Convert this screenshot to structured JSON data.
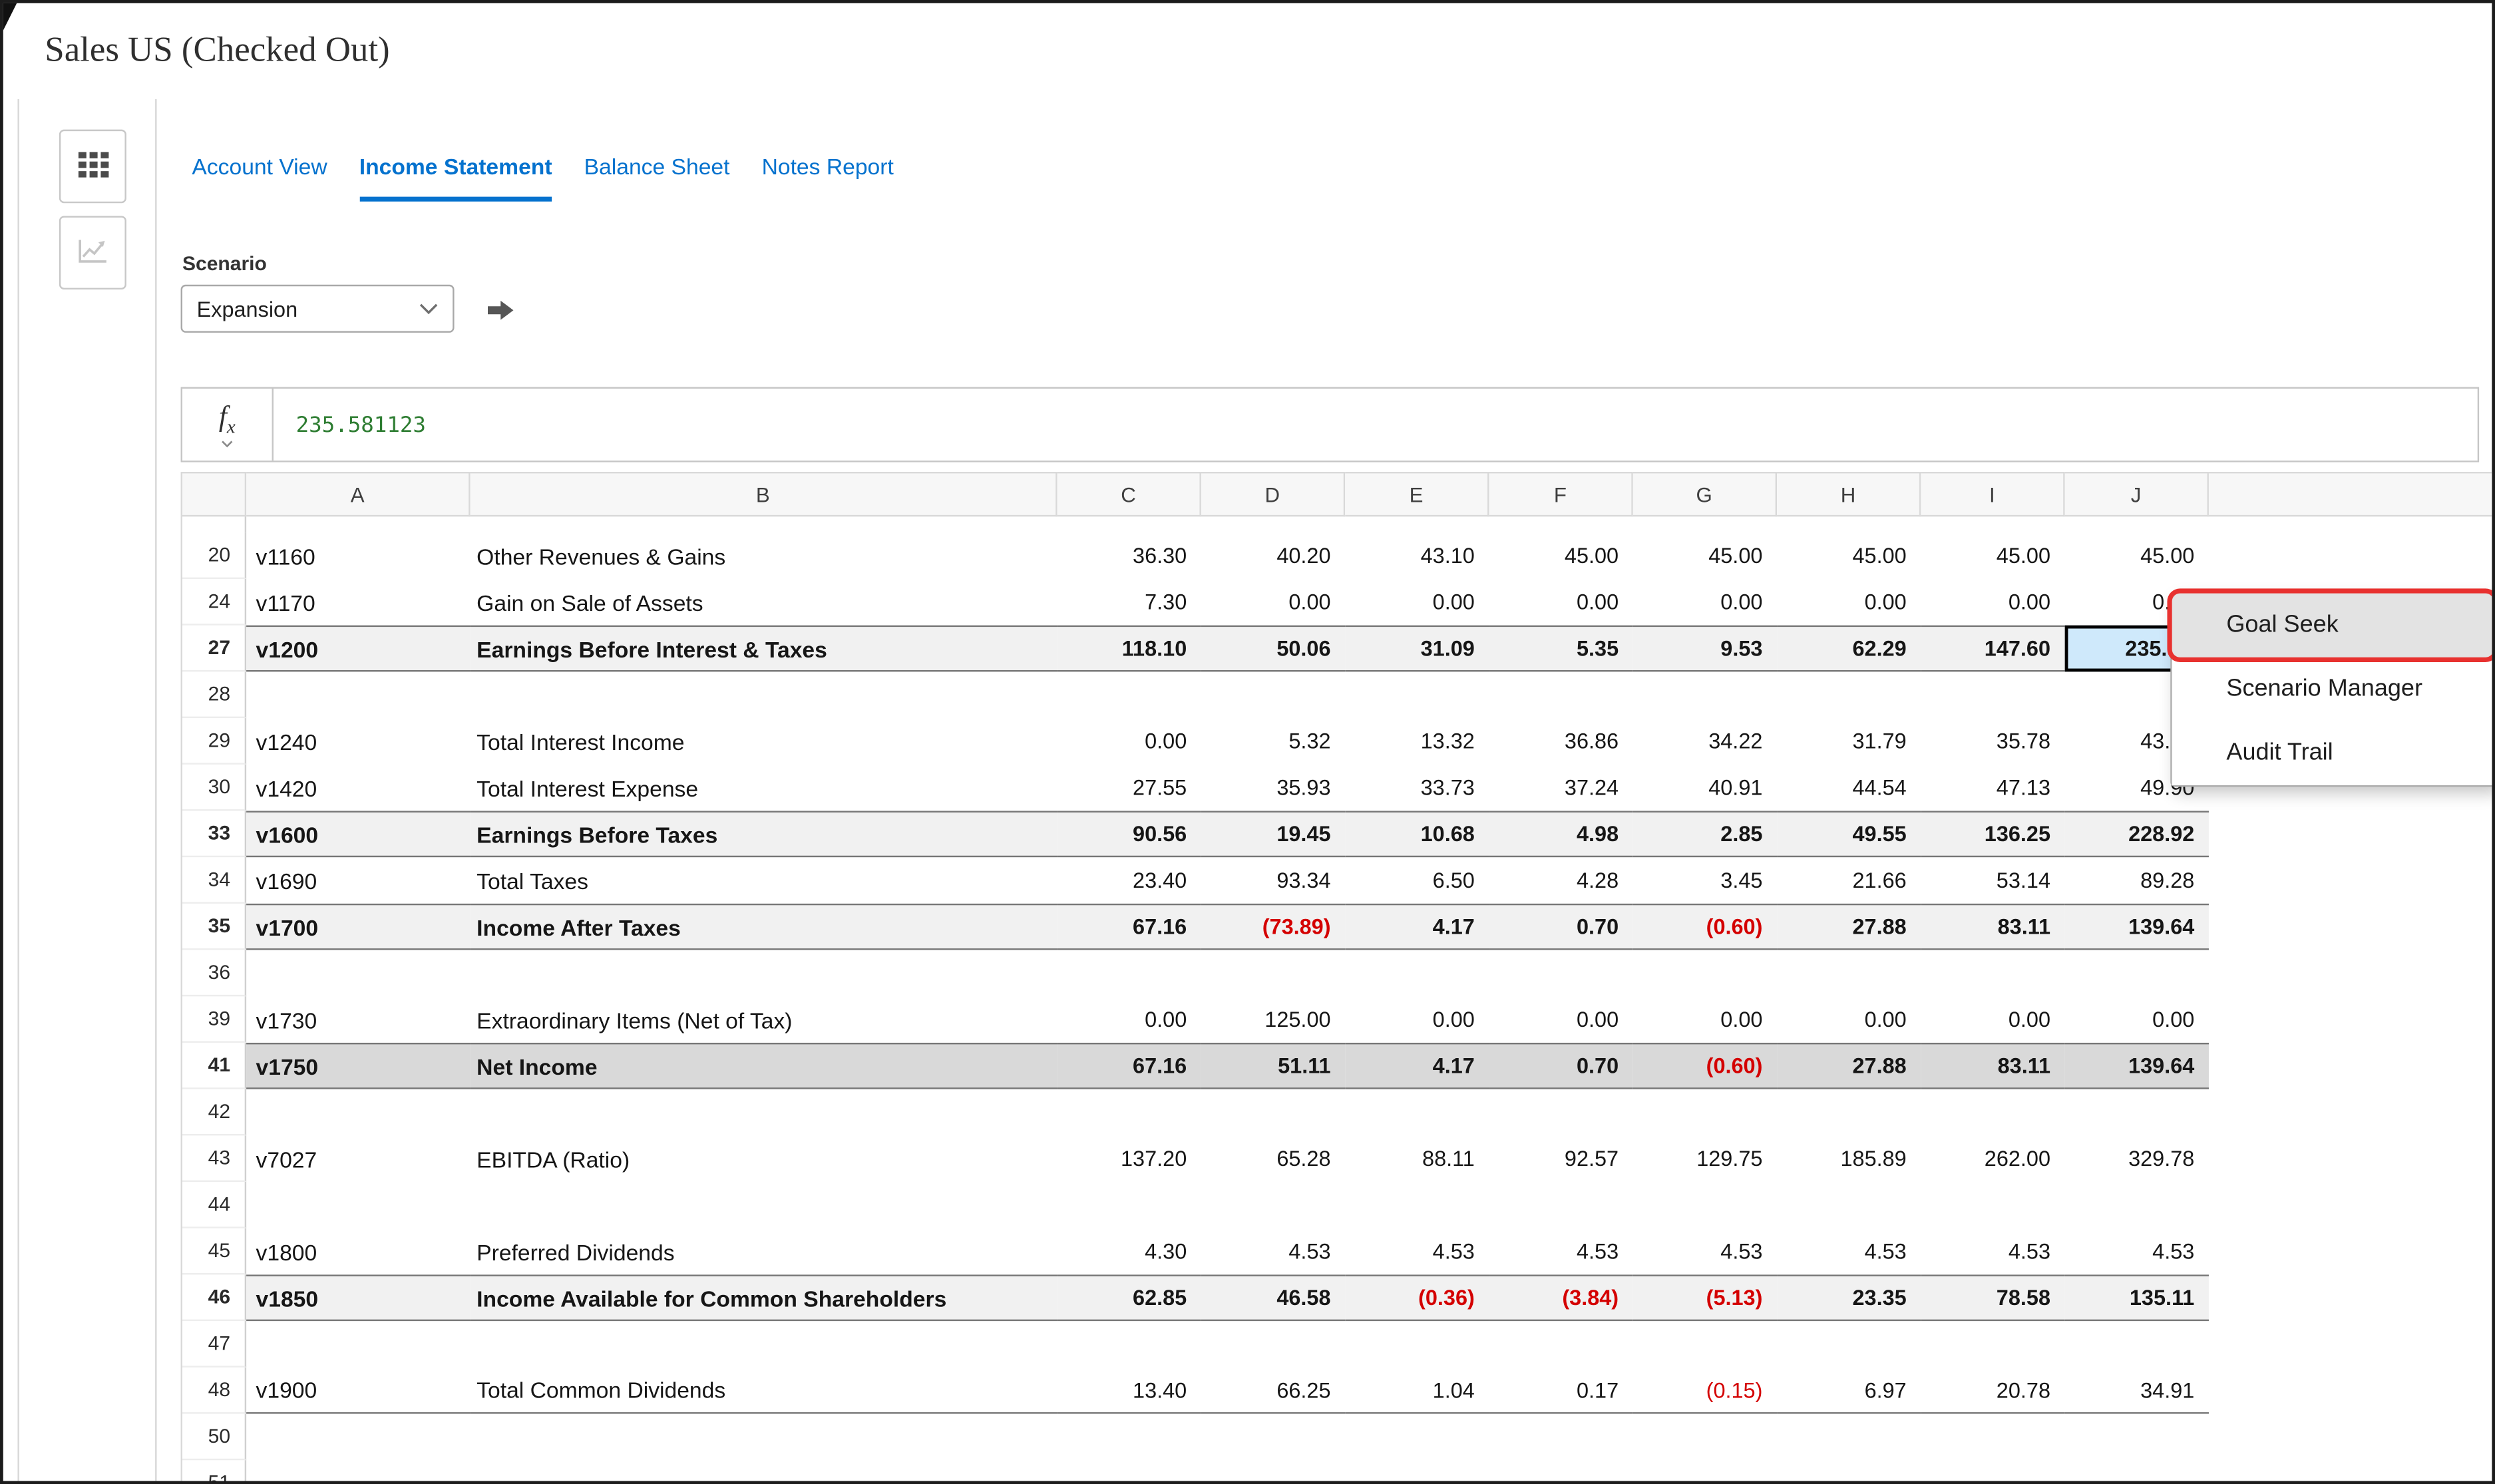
{
  "window": {
    "title": "Sales US (Checked Out)"
  },
  "rail": {
    "buttons": [
      {
        "name": "grid-view",
        "icon": "grid-icon"
      },
      {
        "name": "chart-view",
        "icon": "chart-icon"
      }
    ]
  },
  "tabs": [
    {
      "label": "Account View",
      "active": false
    },
    {
      "label": "Income Statement",
      "active": true
    },
    {
      "label": "Balance Sheet",
      "active": false
    },
    {
      "label": "Notes Report",
      "active": false
    }
  ],
  "scenario": {
    "label": "Scenario",
    "selected": "Expansion"
  },
  "formula_bar": {
    "value": "235.581123"
  },
  "grid": {
    "column_headers": [
      "A",
      "B",
      "C",
      "D",
      "E",
      "F",
      "G",
      "H",
      "I",
      "J"
    ],
    "selected_cell": {
      "row": "27",
      "col": "J"
    },
    "rows": [
      {
        "num": "20",
        "account": "v1160",
        "label": "Other Revenues & Gains",
        "values": [
          "36.30",
          "40.20",
          "43.10",
          "45.00",
          "45.00",
          "45.00",
          "45.00",
          "45.00"
        ],
        "style": "normal"
      },
      {
        "num": "24",
        "account": "v1170",
        "label": "Gain on Sale of Assets",
        "values": [
          "7.30",
          "0.00",
          "0.00",
          "0.00",
          "0.00",
          "0.00",
          "0.00",
          "0.00"
        ],
        "style": "normal"
      },
      {
        "num": "27",
        "account": "v1200",
        "label": "Earnings Before Interest & Taxes",
        "values": [
          "118.10",
          "50.06",
          "31.09",
          "5.35",
          "9.53",
          "62.29",
          "147.60",
          "235.58"
        ],
        "style": "subtotal"
      },
      {
        "num": "28",
        "style": "blank"
      },
      {
        "num": "29",
        "account": "v1240",
        "label": "Total Interest Income",
        "values": [
          "0.00",
          "5.32",
          "13.32",
          "36.86",
          "34.22",
          "31.79",
          "35.78",
          "43.24"
        ],
        "style": "normal"
      },
      {
        "num": "30",
        "account": "v1420",
        "label": "Total Interest Expense",
        "values": [
          "27.55",
          "35.93",
          "33.73",
          "37.24",
          "40.91",
          "44.54",
          "47.13",
          "49.90"
        ],
        "style": "normal"
      },
      {
        "num": "33",
        "account": "v1600",
        "label": "Earnings Before Taxes",
        "values": [
          "90.56",
          "19.45",
          "10.68",
          "4.98",
          "2.85",
          "49.55",
          "136.25",
          "228.92"
        ],
        "style": "subtotal"
      },
      {
        "num": "34",
        "account": "v1690",
        "label": "Total Taxes",
        "values": [
          "23.40",
          "93.34",
          "6.50",
          "4.28",
          "3.45",
          "21.66",
          "53.14",
          "89.28"
        ],
        "style": "normal"
      },
      {
        "num": "35",
        "account": "v1700",
        "label": "Income After Taxes",
        "values": [
          "67.16",
          "(73.89)",
          "4.17",
          "0.70",
          "(0.60)",
          "27.88",
          "83.11",
          "139.64"
        ],
        "style": "subtotal"
      },
      {
        "num": "36",
        "style": "blank"
      },
      {
        "num": "39",
        "account": "v1730",
        "label": "Extraordinary Items (Net of Tax)",
        "values": [
          "0.00",
          "125.00",
          "0.00",
          "0.00",
          "0.00",
          "0.00",
          "0.00",
          "0.00"
        ],
        "style": "normal"
      },
      {
        "num": "41",
        "account": "v1750",
        "label": "Net Income",
        "values": [
          "67.16",
          "51.11",
          "4.17",
          "0.70",
          "(0.60)",
          "27.88",
          "83.11",
          "139.64"
        ],
        "style": "total"
      },
      {
        "num": "42",
        "style": "blank"
      },
      {
        "num": "43",
        "account": "v7027",
        "label": "EBITDA (Ratio)",
        "values": [
          "137.20",
          "65.28",
          "88.11",
          "92.57",
          "129.75",
          "185.89",
          "262.00",
          "329.78"
        ],
        "style": "normal"
      },
      {
        "num": "44",
        "style": "blank"
      },
      {
        "num": "45",
        "account": "v1800",
        "label": "Preferred Dividends",
        "values": [
          "4.30",
          "4.53",
          "4.53",
          "4.53",
          "4.53",
          "4.53",
          "4.53",
          "4.53"
        ],
        "style": "normal"
      },
      {
        "num": "46",
        "account": "v1850",
        "label": "Income Available for Common Shareholders",
        "values": [
          "62.85",
          "46.58",
          "(0.36)",
          "(3.84)",
          "(5.13)",
          "23.35",
          "78.58",
          "135.11"
        ],
        "style": "subtotal"
      },
      {
        "num": "47",
        "style": "blank"
      },
      {
        "num": "48",
        "account": "v1900",
        "label": "Total Common Dividends",
        "values": [
          "13.40",
          "66.25",
          "1.04",
          "0.17",
          "(0.15)",
          "6.97",
          "20.78",
          "34.91"
        ],
        "style": "underline"
      },
      {
        "num": "50",
        "style": "blank"
      },
      {
        "num": "51",
        "style": "blank"
      }
    ]
  },
  "context_menu": {
    "items": [
      {
        "label": "Goal Seek",
        "highlighted": true
      },
      {
        "label": "Scenario Manager",
        "highlighted": false
      },
      {
        "label": "Audit Trail",
        "highlighted": false
      }
    ]
  },
  "colors": {
    "accent_blue": "#0572ce",
    "negative_red": "#d40000",
    "formula_green": "#2e7d32",
    "selection_fill": "#cfe9fb",
    "annotation_red": "#e8312f"
  }
}
